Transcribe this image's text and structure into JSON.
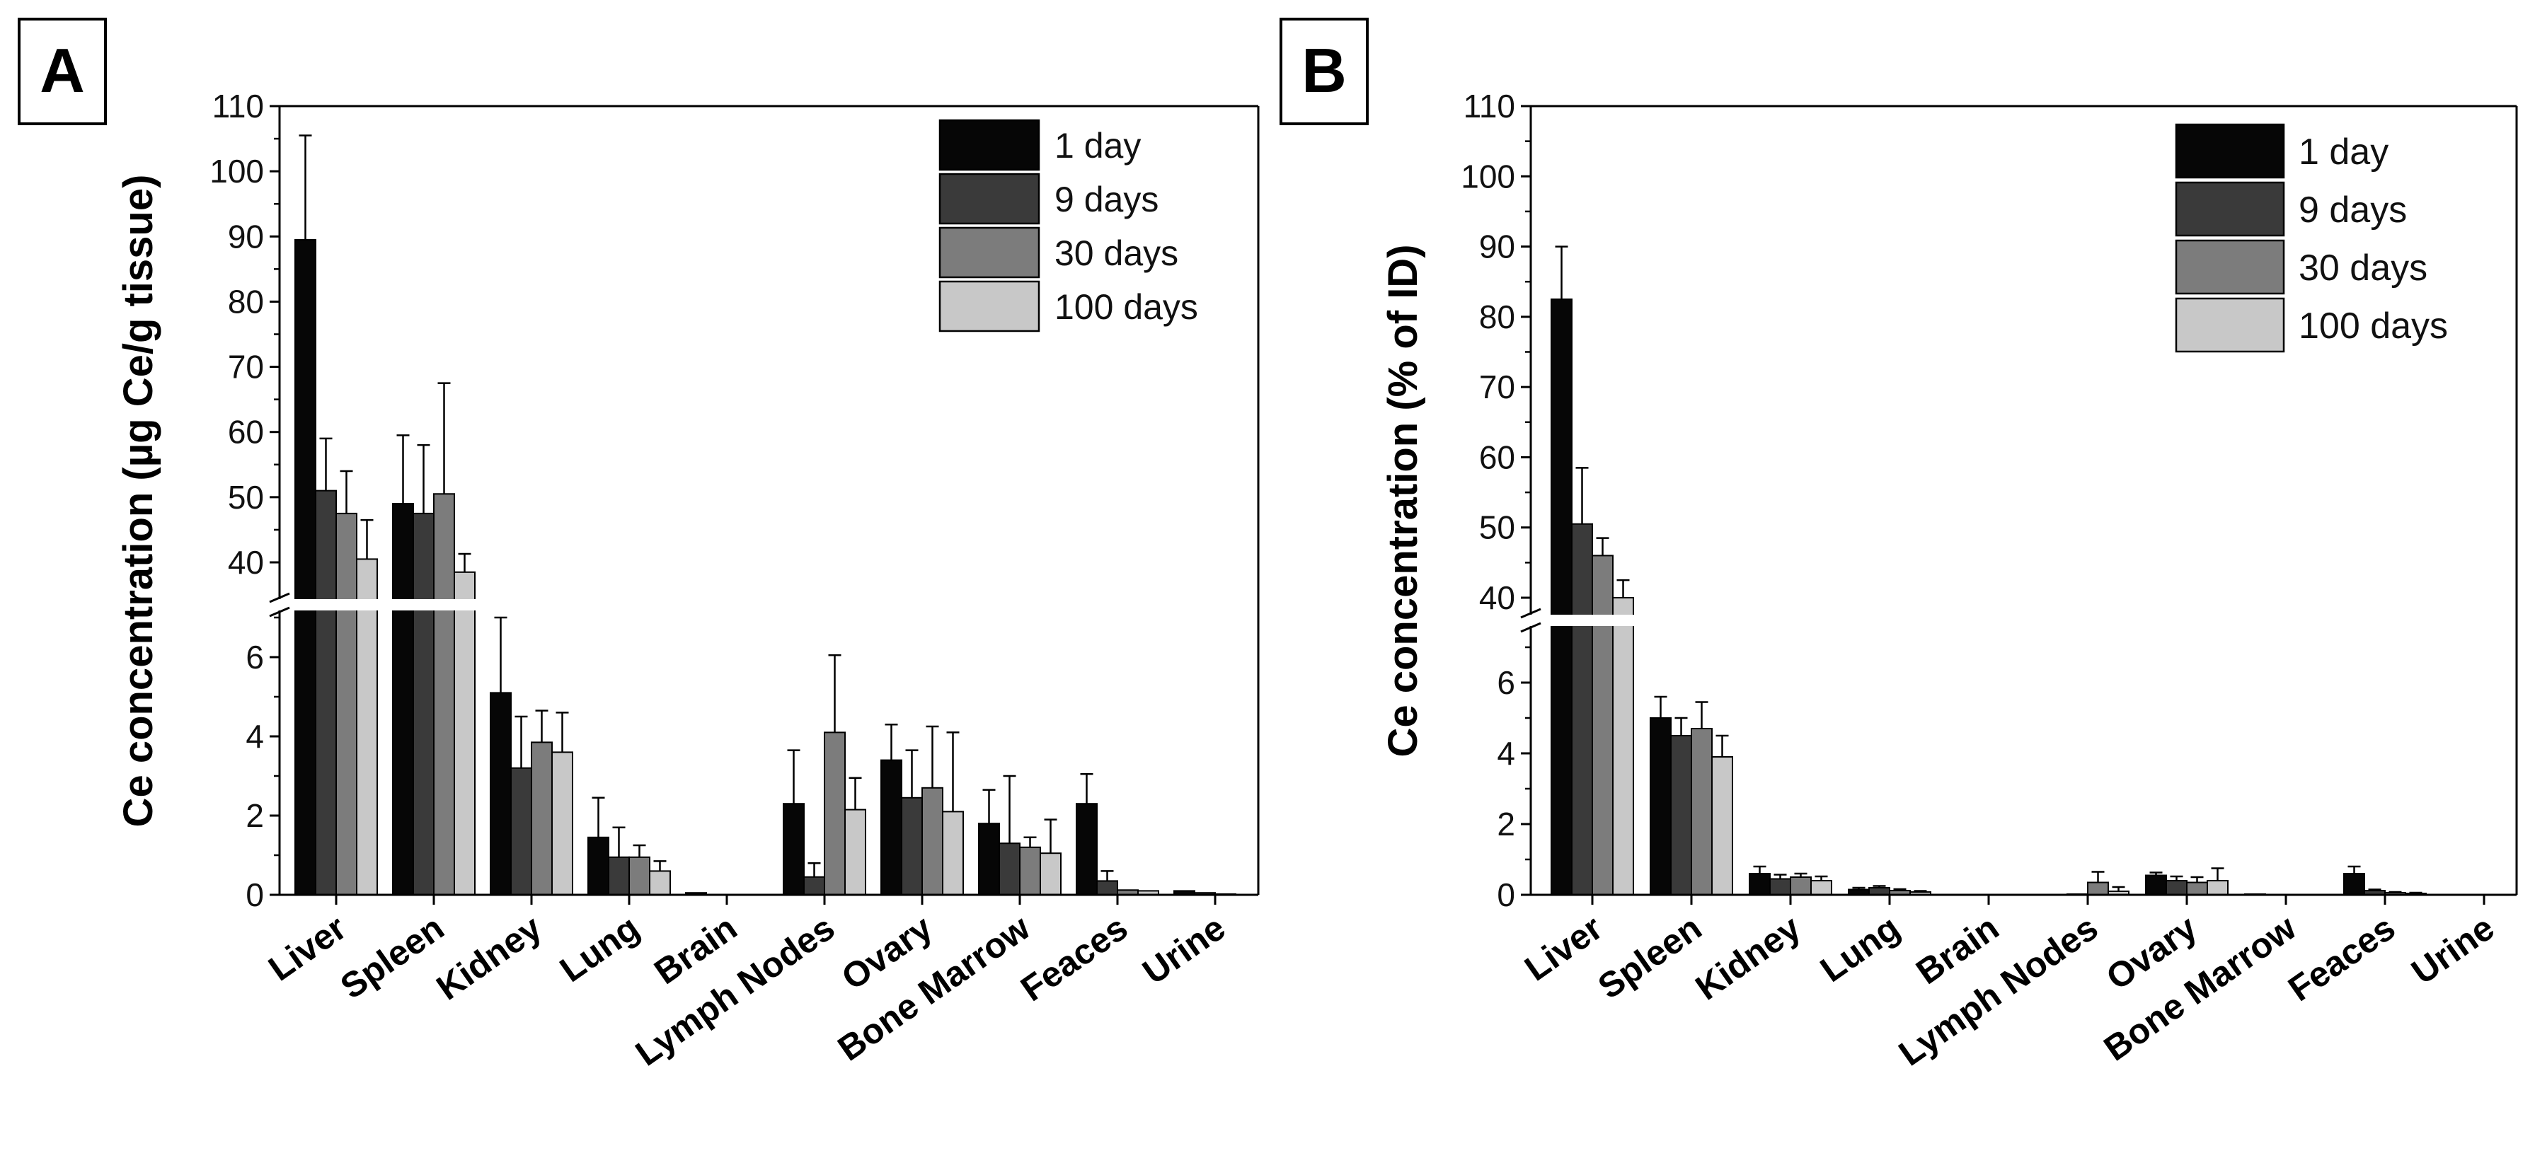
{
  "chart_data": [
    {
      "panel_label": "A",
      "type": "bar",
      "title": "",
      "xlabel": "",
      "ylabel": "Ce concentration (µg Ce/g tissue)",
      "axis_break": {
        "lower_range": [
          0,
          7.5
        ],
        "upper_range": [
          37,
          110
        ]
      },
      "yticks": [
        0,
        2,
        4,
        6,
        40,
        50,
        60,
        70,
        80,
        90,
        100,
        110
      ],
      "grid": false,
      "legend_position": "top-right",
      "categories": [
        "Liver",
        "Spleen",
        "Kidney",
        "Lung",
        "Brain",
        "Lymph Nodes",
        "Ovary",
        "Bone Marrow",
        "Feaces",
        "Urine"
      ],
      "series": [
        {
          "name": "1 day",
          "color": "#060606",
          "values": [
            89.5,
            49.0,
            5.1,
            1.45,
            0.05,
            2.3,
            3.4,
            1.8,
            2.3,
            0.1
          ],
          "errors": [
            16.0,
            10.5,
            1.9,
            1.0,
            0.0,
            1.35,
            0.9,
            0.85,
            0.75,
            0.0
          ]
        },
        {
          "name": "9 days",
          "color": "#3a3a3a",
          "values": [
            51.0,
            47.5,
            3.2,
            0.95,
            0.0,
            0.45,
            2.45,
            1.3,
            0.35,
            0.05
          ],
          "errors": [
            8.0,
            10.5,
            1.3,
            0.75,
            0.0,
            0.35,
            1.2,
            1.7,
            0.25,
            0.0
          ]
        },
        {
          "name": "30 days",
          "color": "#7c7c7c",
          "values": [
            47.5,
            50.5,
            3.85,
            0.95,
            0.0,
            4.1,
            2.7,
            1.2,
            0.12,
            0.02
          ],
          "errors": [
            6.5,
            17.0,
            0.8,
            0.3,
            0.0,
            1.95,
            1.55,
            0.25,
            0.0,
            0.0
          ]
        },
        {
          "name": "100 days",
          "color": "#c8c8c8",
          "values": [
            40.5,
            38.5,
            3.6,
            0.6,
            0.0,
            2.15,
            2.1,
            1.05,
            0.1,
            0.0
          ],
          "errors": [
            6.0,
            2.8,
            1.0,
            0.25,
            0.0,
            0.8,
            2.0,
            0.85,
            0.0,
            0.0
          ]
        }
      ]
    },
    {
      "panel_label": "B",
      "type": "bar",
      "title": "",
      "xlabel": "",
      "ylabel": "Ce concentration (% of ID)",
      "axis_break": {
        "lower_range": [
          0,
          7.5
        ],
        "upper_range": [
          37,
          110
        ]
      },
      "yticks": [
        0,
        2,
        4,
        6,
        40,
        50,
        60,
        70,
        80,
        90,
        100,
        110
      ],
      "grid": false,
      "legend_position": "top-right",
      "categories": [
        "Liver",
        "Spleen",
        "Kidney",
        "Lung",
        "Brain",
        "Lymph Nodes",
        "Ovary",
        "Bone Marrow",
        "Feaces",
        "Urine"
      ],
      "series": [
        {
          "name": "1 day",
          "color": "#060606",
          "values": [
            82.5,
            5.0,
            0.6,
            0.15,
            0.0,
            0.0,
            0.55,
            0.02,
            0.6,
            0.0
          ],
          "errors": [
            7.5,
            0.6,
            0.2,
            0.05,
            0.0,
            0.0,
            0.08,
            0.0,
            0.2,
            0.0
          ]
        },
        {
          "name": "9 days",
          "color": "#3a3a3a",
          "values": [
            50.5,
            4.5,
            0.45,
            0.2,
            0.0,
            0.02,
            0.4,
            0.0,
            0.12,
            0.0
          ],
          "errors": [
            8.0,
            0.5,
            0.12,
            0.05,
            0.0,
            0.0,
            0.12,
            0.0,
            0.03,
            0.0
          ]
        },
        {
          "name": "30 days",
          "color": "#7c7c7c",
          "values": [
            46.0,
            4.7,
            0.5,
            0.12,
            0.0,
            0.35,
            0.35,
            0.0,
            0.06,
            0.0
          ],
          "errors": [
            2.5,
            0.75,
            0.1,
            0.04,
            0.0,
            0.3,
            0.15,
            0.0,
            0.02,
            0.0
          ]
        },
        {
          "name": "100 days",
          "color": "#c8c8c8",
          "values": [
            40.0,
            3.9,
            0.4,
            0.08,
            0.0,
            0.1,
            0.4,
            0.0,
            0.04,
            0.0
          ],
          "errors": [
            2.5,
            0.6,
            0.12,
            0.03,
            0.0,
            0.12,
            0.35,
            0.0,
            0.02,
            0.0
          ]
        }
      ]
    }
  ]
}
